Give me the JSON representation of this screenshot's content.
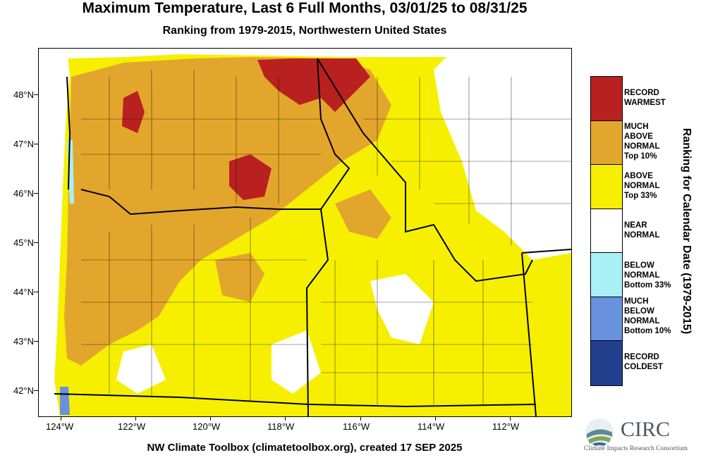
{
  "title": "Maximum Temperature, Last 6 Full Months, 03/01/25 to 08/31/25",
  "subtitle": "Ranking from 1979-2015, Northwestern United States",
  "footer": "NW Climate Toolbox (climatetoolbox.org), created 17 SEP 2025",
  "y_axis_labels": [
    "48°N",
    "47°N",
    "46°N",
    "45°N",
    "44°N",
    "43°N",
    "42°N"
  ],
  "x_axis_labels": [
    "124°W",
    "122°W",
    "120°W",
    "118°W",
    "116°W",
    "114°W",
    "112°W"
  ],
  "legend_title": "Ranking for Calendar Date (1979-2015)",
  "legend": [
    {
      "label": "RECORD\nWARMEST",
      "color": "#b8211f"
    },
    {
      "label": "MUCH\nABOVE\nNORMAL\nTop 10%",
      "color": "#e3a62c"
    },
    {
      "label": "ABOVE\nNORMAL\nTop 33%",
      "color": "#f6f000"
    },
    {
      "label": "NEAR\nNORMAL",
      "color": "#ffffff"
    },
    {
      "label": "BELOW\nNORMAL\nBottom 33%",
      "color": "#a8f0f6"
    },
    {
      "label": "MUCH\nBELOW\nNORMAL\nBottom 10%",
      "color": "#6891e0"
    },
    {
      "label": "RECORD\nCOLDEST",
      "color": "#22408e"
    }
  ],
  "logo": {
    "name": "CIRC",
    "subtitle": "Climate Impacts Research Consortium"
  }
}
